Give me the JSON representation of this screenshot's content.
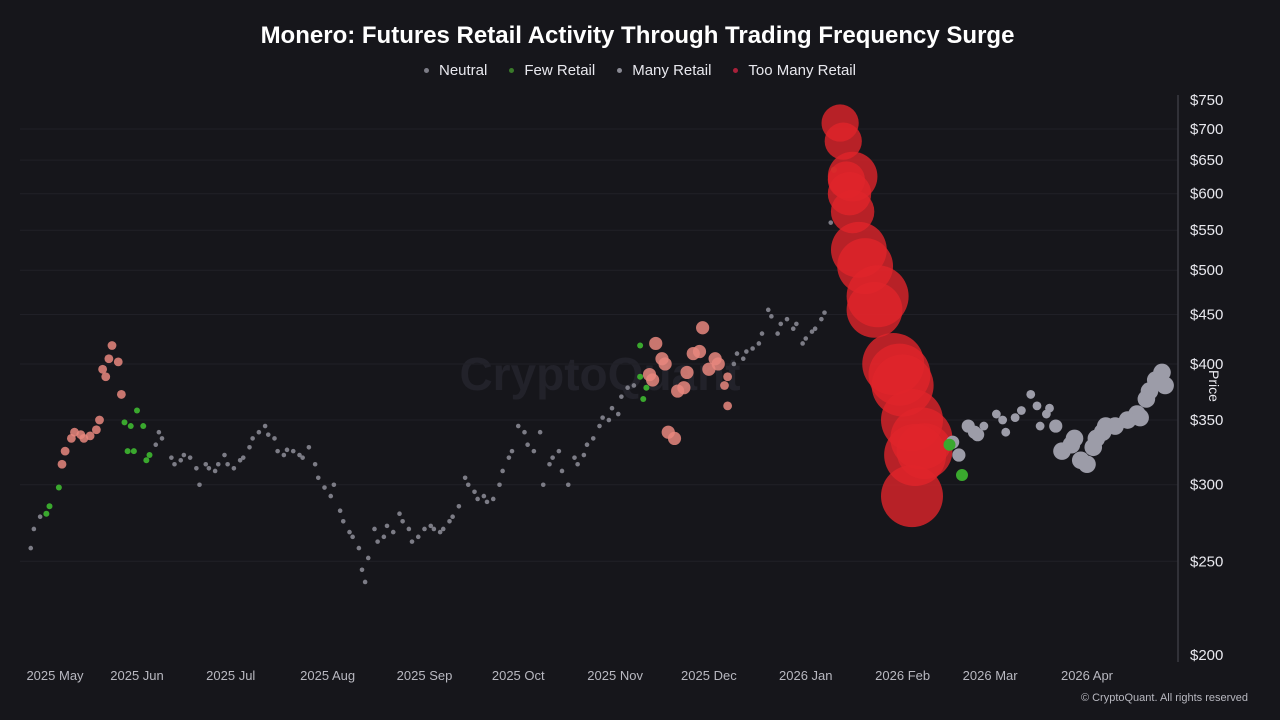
{
  "chart_data": {
    "type": "scatter",
    "title": "Monero: Futures Retail Activity Through Trading Frequency Surge",
    "ylabel": "Price",
    "xlabel": "",
    "yscale": "log",
    "ylim": [
      200,
      750
    ],
    "yticks": [
      "$750",
      "$700",
      "$650",
      "$600",
      "$550",
      "$500",
      "$450",
      "$400",
      "$350",
      "$300",
      "$250",
      "$200"
    ],
    "ytick_values": [
      750,
      700,
      650,
      600,
      550,
      500,
      450,
      400,
      350,
      300,
      250,
      200
    ],
    "xticks": [
      {
        "label": "2025 May",
        "date": "2025-05-05"
      },
      {
        "label": "2025 Jun",
        "date": "2025-06-01"
      },
      {
        "label": "2025 Jul",
        "date": "2025-07-01"
      },
      {
        "label": "2025 Aug",
        "date": "2025-08-01"
      },
      {
        "label": "2025 Sep",
        "date": "2025-09-01"
      },
      {
        "label": "2025 Oct",
        "date": "2025-10-01"
      },
      {
        "label": "2025 Nov",
        "date": "2025-11-01"
      },
      {
        "label": "2025 Dec",
        "date": "2025-12-01"
      },
      {
        "label": "2026 Jan",
        "date": "2026-01-01"
      },
      {
        "label": "2026 Feb",
        "date": "2026-02-01"
      },
      {
        "label": "2026 Mar",
        "date": "2026-03-01"
      },
      {
        "label": "2026 Apr",
        "date": "2026-04-01"
      }
    ],
    "legend": [
      {
        "key": "N",
        "label": "Neutral",
        "color": "#7c7c86"
      },
      {
        "key": "F",
        "label": "Few Retail",
        "color": "#3a9a2a"
      },
      {
        "key": "M",
        "label": "Many Retail",
        "color": "#9a9aa6"
      },
      {
        "key": "T",
        "label": "Too Many Retail",
        "color": "#e0242a"
      }
    ],
    "legend_position": "top-center",
    "colors": {
      "N": "#7c7c86",
      "F": "#3aa82e",
      "M": "#9c9ca8",
      "T_low": "#e8877e",
      "T_high": "#e0242a"
    },
    "grid": true,
    "watermark": "CryptoQuant",
    "points_format": [
      "date",
      "price",
      "category",
      "trading_frequency"
    ],
    "points": [
      [
        "2025-04-28",
        258,
        "N",
        1
      ],
      [
        "2025-04-29",
        270,
        "N",
        1
      ],
      [
        "2025-05-01",
        278,
        "N",
        1
      ],
      [
        "2025-05-03",
        280,
        "F",
        1
      ],
      [
        "2025-05-04",
        285,
        "F",
        1
      ],
      [
        "2025-05-07",
        298,
        "F",
        1
      ],
      [
        "2025-05-08",
        315,
        "T",
        2
      ],
      [
        "2025-05-09",
        325,
        "T",
        2
      ],
      [
        "2025-05-11",
        335,
        "T",
        2
      ],
      [
        "2025-05-12",
        340,
        "T",
        2
      ],
      [
        "2025-05-14",
        338,
        "T",
        2
      ],
      [
        "2025-05-15",
        335,
        "T",
        2
      ],
      [
        "2025-05-17",
        337,
        "T",
        2
      ],
      [
        "2025-05-19",
        342,
        "T",
        2
      ],
      [
        "2025-05-20",
        350,
        "T",
        2
      ],
      [
        "2025-05-21",
        395,
        "T",
        2
      ],
      [
        "2025-05-22",
        388,
        "T",
        2
      ],
      [
        "2025-05-23",
        405,
        "T",
        2
      ],
      [
        "2025-05-24",
        418,
        "T",
        2
      ],
      [
        "2025-05-26",
        402,
        "T",
        2
      ],
      [
        "2025-05-27",
        372,
        "T",
        2
      ],
      [
        "2025-05-28",
        348,
        "F",
        1
      ],
      [
        "2025-05-29",
        325,
        "F",
        1
      ],
      [
        "2025-05-30",
        345,
        "F",
        1
      ],
      [
        "2025-05-31",
        325,
        "F",
        1
      ],
      [
        "2025-06-01",
        358,
        "F",
        1
      ],
      [
        "2025-06-03",
        345,
        "F",
        1
      ],
      [
        "2025-06-04",
        318,
        "F",
        1
      ],
      [
        "2025-06-05",
        322,
        "F",
        1
      ],
      [
        "2025-06-07",
        330,
        "N",
        1
      ],
      [
        "2025-06-08",
        340,
        "N",
        1
      ],
      [
        "2025-06-09",
        335,
        "N",
        1
      ],
      [
        "2025-06-12",
        320,
        "N",
        1
      ],
      [
        "2025-06-13",
        315,
        "N",
        1
      ],
      [
        "2025-06-15",
        318,
        "N",
        1
      ],
      [
        "2025-06-16",
        322,
        "N",
        1
      ],
      [
        "2025-06-18",
        320,
        "N",
        1
      ],
      [
        "2025-06-20",
        312,
        "N",
        1
      ],
      [
        "2025-06-21",
        300,
        "N",
        1
      ],
      [
        "2025-06-23",
        315,
        "N",
        1
      ],
      [
        "2025-06-24",
        312,
        "N",
        1
      ],
      [
        "2025-06-26",
        310,
        "N",
        1
      ],
      [
        "2025-06-27",
        315,
        "N",
        1
      ],
      [
        "2025-06-29",
        322,
        "N",
        1
      ],
      [
        "2025-06-30",
        315,
        "N",
        1
      ],
      [
        "2025-07-02",
        312,
        "N",
        1
      ],
      [
        "2025-07-04",
        318,
        "N",
        1
      ],
      [
        "2025-07-05",
        320,
        "N",
        1
      ],
      [
        "2025-07-07",
        328,
        "N",
        1
      ],
      [
        "2025-07-08",
        335,
        "N",
        1
      ],
      [
        "2025-07-10",
        340,
        "N",
        1
      ],
      [
        "2025-07-12",
        345,
        "N",
        1
      ],
      [
        "2025-07-13",
        338,
        "N",
        1
      ],
      [
        "2025-07-15",
        335,
        "N",
        1
      ],
      [
        "2025-07-16",
        325,
        "N",
        1
      ],
      [
        "2025-07-18",
        322,
        "N",
        1
      ],
      [
        "2025-07-19",
        326,
        "N",
        1
      ],
      [
        "2025-07-21",
        325,
        "N",
        1
      ],
      [
        "2025-07-23",
        322,
        "N",
        1
      ],
      [
        "2025-07-24",
        320,
        "N",
        1
      ],
      [
        "2025-07-26",
        328,
        "N",
        1
      ],
      [
        "2025-07-28",
        315,
        "N",
        1
      ],
      [
        "2025-07-29",
        305,
        "N",
        1
      ],
      [
        "2025-07-31",
        298,
        "N",
        1
      ],
      [
        "2025-08-02",
        292,
        "N",
        1
      ],
      [
        "2025-08-03",
        300,
        "N",
        1
      ],
      [
        "2025-08-05",
        282,
        "N",
        1
      ],
      [
        "2025-08-06",
        275,
        "N",
        1
      ],
      [
        "2025-08-08",
        268,
        "N",
        1
      ],
      [
        "2025-08-09",
        265,
        "N",
        1
      ],
      [
        "2025-08-11",
        258,
        "N",
        1
      ],
      [
        "2025-08-12",
        245,
        "N",
        1
      ],
      [
        "2025-08-13",
        238,
        "N",
        1
      ],
      [
        "2025-08-14",
        252,
        "N",
        1
      ],
      [
        "2025-08-16",
        270,
        "N",
        1
      ],
      [
        "2025-08-17",
        262,
        "N",
        1
      ],
      [
        "2025-08-19",
        265,
        "N",
        1
      ],
      [
        "2025-08-20",
        272,
        "N",
        1
      ],
      [
        "2025-08-22",
        268,
        "N",
        1
      ],
      [
        "2025-08-24",
        280,
        "N",
        1
      ],
      [
        "2025-08-25",
        275,
        "N",
        1
      ],
      [
        "2025-08-27",
        270,
        "N",
        1
      ],
      [
        "2025-08-28",
        262,
        "N",
        1
      ],
      [
        "2025-08-30",
        265,
        "N",
        1
      ],
      [
        "2025-09-01",
        270,
        "N",
        1
      ],
      [
        "2025-09-03",
        272,
        "N",
        1
      ],
      [
        "2025-09-04",
        270,
        "N",
        1
      ],
      [
        "2025-09-06",
        268,
        "N",
        1
      ],
      [
        "2025-09-07",
        270,
        "N",
        1
      ],
      [
        "2025-09-09",
        275,
        "N",
        1
      ],
      [
        "2025-09-10",
        278,
        "N",
        1
      ],
      [
        "2025-09-12",
        285,
        "N",
        1
      ],
      [
        "2025-09-14",
        305,
        "N",
        1
      ],
      [
        "2025-09-15",
        300,
        "N",
        1
      ],
      [
        "2025-09-17",
        295,
        "N",
        1
      ],
      [
        "2025-09-18",
        290,
        "N",
        1
      ],
      [
        "2025-09-20",
        292,
        "N",
        1
      ],
      [
        "2025-09-21",
        288,
        "N",
        1
      ],
      [
        "2025-09-23",
        290,
        "N",
        1
      ],
      [
        "2025-09-25",
        300,
        "N",
        1
      ],
      [
        "2025-09-26",
        310,
        "N",
        1
      ],
      [
        "2025-09-28",
        320,
        "N",
        1
      ],
      [
        "2025-09-29",
        325,
        "N",
        1
      ],
      [
        "2025-10-01",
        345,
        "N",
        1
      ],
      [
        "2025-10-03",
        340,
        "N",
        1
      ],
      [
        "2025-10-04",
        330,
        "N",
        1
      ],
      [
        "2025-10-06",
        325,
        "N",
        1
      ],
      [
        "2025-10-08",
        340,
        "N",
        1
      ],
      [
        "2025-10-09",
        300,
        "N",
        1
      ],
      [
        "2025-10-11",
        315,
        "N",
        1
      ],
      [
        "2025-10-12",
        320,
        "N",
        1
      ],
      [
        "2025-10-14",
        325,
        "N",
        1
      ],
      [
        "2025-10-15",
        310,
        "N",
        1
      ],
      [
        "2025-10-17",
        300,
        "N",
        1
      ],
      [
        "2025-10-19",
        320,
        "N",
        1
      ],
      [
        "2025-10-20",
        315,
        "N",
        1
      ],
      [
        "2025-10-22",
        322,
        "N",
        1
      ],
      [
        "2025-10-23",
        330,
        "N",
        1
      ],
      [
        "2025-10-25",
        335,
        "N",
        1
      ],
      [
        "2025-10-27",
        345,
        "N",
        1
      ],
      [
        "2025-10-28",
        352,
        "N",
        1
      ],
      [
        "2025-10-30",
        350,
        "N",
        1
      ],
      [
        "2025-10-31",
        360,
        "N",
        1
      ],
      [
        "2025-11-02",
        355,
        "N",
        1
      ],
      [
        "2025-11-03",
        370,
        "N",
        1
      ],
      [
        "2025-11-05",
        378,
        "N",
        1
      ],
      [
        "2025-11-07",
        380,
        "N",
        1
      ],
      [
        "2025-11-09",
        418,
        "F",
        1
      ],
      [
        "2025-11-09",
        388,
        "F",
        1
      ],
      [
        "2025-11-10",
        368,
        "F",
        1
      ],
      [
        "2025-11-11",
        378,
        "F",
        1
      ],
      [
        "2025-11-12",
        390,
        "T",
        3
      ],
      [
        "2025-11-13",
        385,
        "T",
        3
      ],
      [
        "2025-11-14",
        420,
        "T",
        3
      ],
      [
        "2025-11-16",
        405,
        "T",
        3
      ],
      [
        "2025-11-17",
        400,
        "T",
        3
      ],
      [
        "2025-11-18",
        340,
        "T",
        3
      ],
      [
        "2025-11-20",
        335,
        "T",
        3
      ],
      [
        "2025-11-21",
        375,
        "T",
        3
      ],
      [
        "2025-11-23",
        378,
        "T",
        3
      ],
      [
        "2025-11-24",
        392,
        "T",
        3
      ],
      [
        "2025-11-26",
        410,
        "T",
        3
      ],
      [
        "2025-11-28",
        412,
        "T",
        3
      ],
      [
        "2025-11-29",
        436,
        "T",
        3
      ],
      [
        "2025-12-01",
        395,
        "T",
        3
      ],
      [
        "2025-12-03",
        405,
        "T",
        3
      ],
      [
        "2025-12-04",
        400,
        "T",
        3
      ],
      [
        "2025-12-06",
        380,
        "T",
        2
      ],
      [
        "2025-12-07",
        362,
        "T",
        2
      ],
      [
        "2025-12-07",
        388,
        "T",
        2
      ],
      [
        "2025-12-09",
        400,
        "N",
        1
      ],
      [
        "2025-12-10",
        410,
        "N",
        1
      ],
      [
        "2025-12-12",
        405,
        "N",
        1
      ],
      [
        "2025-12-13",
        412,
        "N",
        1
      ],
      [
        "2025-12-15",
        415,
        "N",
        1
      ],
      [
        "2025-12-17",
        420,
        "N",
        1
      ],
      [
        "2025-12-18",
        430,
        "N",
        1
      ],
      [
        "2025-12-20",
        455,
        "N",
        1
      ],
      [
        "2025-12-21",
        448,
        "N",
        1
      ],
      [
        "2025-12-23",
        430,
        "N",
        1
      ],
      [
        "2025-12-24",
        440,
        "N",
        1
      ],
      [
        "2025-12-26",
        445,
        "N",
        1
      ],
      [
        "2025-12-28",
        435,
        "N",
        1
      ],
      [
        "2025-12-29",
        440,
        "N",
        1
      ],
      [
        "2025-12-31",
        420,
        "N",
        1
      ],
      [
        "2026-01-01",
        425,
        "N",
        1
      ],
      [
        "2026-01-03",
        432,
        "N",
        1
      ],
      [
        "2026-01-04",
        435,
        "N",
        1
      ],
      [
        "2026-01-06",
        445,
        "N",
        1
      ],
      [
        "2026-01-07",
        452,
        "N",
        1
      ],
      [
        "2026-01-09",
        560,
        "N",
        1
      ],
      [
        "2026-01-10",
        635,
        "F",
        1
      ],
      [
        "2026-01-12",
        710,
        "T",
        6
      ],
      [
        "2026-01-13",
        680,
        "T",
        6
      ],
      [
        "2026-01-14",
        620,
        "T",
        6
      ],
      [
        "2026-01-16",
        625,
        "T",
        8
      ],
      [
        "2026-01-15",
        600,
        "T",
        7
      ],
      [
        "2026-01-16",
        575,
        "T",
        7
      ],
      [
        "2026-01-18",
        525,
        "T",
        9
      ],
      [
        "2026-01-20",
        505,
        "T",
        9
      ],
      [
        "2026-01-23",
        455,
        "T",
        9
      ],
      [
        "2026-01-24",
        470,
        "T",
        10
      ],
      [
        "2026-01-29",
        400,
        "T",
        10
      ],
      [
        "2026-01-31",
        390,
        "T",
        10
      ],
      [
        "2026-02-01",
        380,
        "T",
        10
      ],
      [
        "2026-02-04",
        350,
        "T",
        10
      ],
      [
        "2026-02-07",
        335,
        "T",
        10
      ],
      [
        "2026-02-08",
        325,
        "T",
        9
      ],
      [
        "2026-02-05",
        322,
        "T",
        10
      ],
      [
        "2026-02-04",
        292,
        "T",
        10
      ],
      [
        "2026-02-17",
        332,
        "M",
        3
      ],
      [
        "2026-02-19",
        322,
        "M",
        3
      ],
      [
        "2026-02-16",
        330,
        "F",
        3
      ],
      [
        "2026-02-20",
        307,
        "F",
        3
      ],
      [
        "2026-02-22",
        345,
        "M",
        3
      ],
      [
        "2026-02-24",
        340,
        "M",
        3
      ],
      [
        "2026-02-25",
        338,
        "M",
        3
      ],
      [
        "2026-02-27",
        345,
        "M",
        2
      ],
      [
        "2026-03-03",
        355,
        "M",
        2
      ],
      [
        "2026-03-05",
        350,
        "M",
        2
      ],
      [
        "2026-03-06",
        340,
        "M",
        2
      ],
      [
        "2026-03-09",
        352,
        "M",
        2
      ],
      [
        "2026-03-11",
        358,
        "M",
        2
      ],
      [
        "2026-03-14",
        372,
        "M",
        2
      ],
      [
        "2026-03-16",
        362,
        "M",
        2
      ],
      [
        "2026-03-17",
        345,
        "M",
        2
      ],
      [
        "2026-03-19",
        355,
        "M",
        2
      ],
      [
        "2026-03-20",
        360,
        "M",
        2
      ],
      [
        "2026-03-22",
        345,
        "M",
        3
      ],
      [
        "2026-03-24",
        325,
        "M",
        4
      ],
      [
        "2026-03-27",
        330,
        "M",
        4
      ],
      [
        "2026-03-28",
        335,
        "M",
        4
      ],
      [
        "2026-03-30",
        318,
        "M",
        4
      ],
      [
        "2026-04-01",
        315,
        "M",
        4
      ],
      [
        "2026-04-03",
        328,
        "M",
        4
      ],
      [
        "2026-04-04",
        335,
        "M",
        4
      ],
      [
        "2026-04-06",
        340,
        "M",
        4
      ],
      [
        "2026-04-07",
        345,
        "M",
        4
      ],
      [
        "2026-04-10",
        345,
        "M",
        4
      ],
      [
        "2026-04-14",
        350,
        "M",
        4
      ],
      [
        "2026-04-17",
        355,
        "M",
        4
      ],
      [
        "2026-04-18",
        352,
        "M",
        4
      ],
      [
        "2026-04-20",
        368,
        "M",
        4
      ],
      [
        "2026-04-21",
        375,
        "M",
        4
      ],
      [
        "2026-04-23",
        385,
        "M",
        4
      ],
      [
        "2026-04-25",
        392,
        "M",
        4
      ],
      [
        "2026-04-26",
        380,
        "M",
        4
      ]
    ]
  },
  "footer": "© CryptoQuant. All rights reserved"
}
